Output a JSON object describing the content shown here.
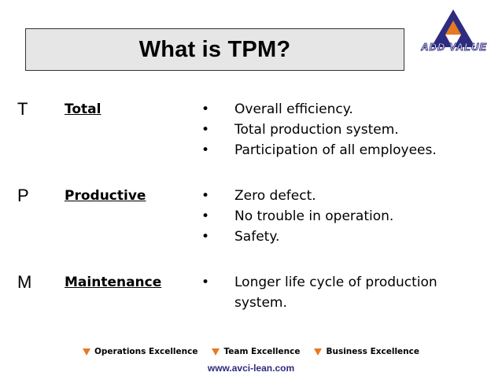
{
  "title": "What is TPM?",
  "logo": {
    "text": "ADD VALUE",
    "colors": {
      "navy": "#2e2c80",
      "orange": "#e57a23"
    }
  },
  "sections": [
    {
      "letter": "T",
      "word": "Total",
      "bullets": [
        "Overall efficiency.",
        "Total production system.",
        "Participation of all employees."
      ]
    },
    {
      "letter": "P",
      "word": "Productive",
      "bullets": [
        "Zero defect.",
        "No trouble in operation.",
        "Safety."
      ]
    },
    {
      "letter": "M",
      "word": "Maintenance",
      "bullets": [
        "Longer life cycle of production system."
      ]
    }
  ],
  "bullet_symbol": "•",
  "footer": {
    "items": [
      "Operations Excellence",
      "Team Excellence",
      "Business Excellence"
    ],
    "url": "www.avci-lean.com"
  }
}
